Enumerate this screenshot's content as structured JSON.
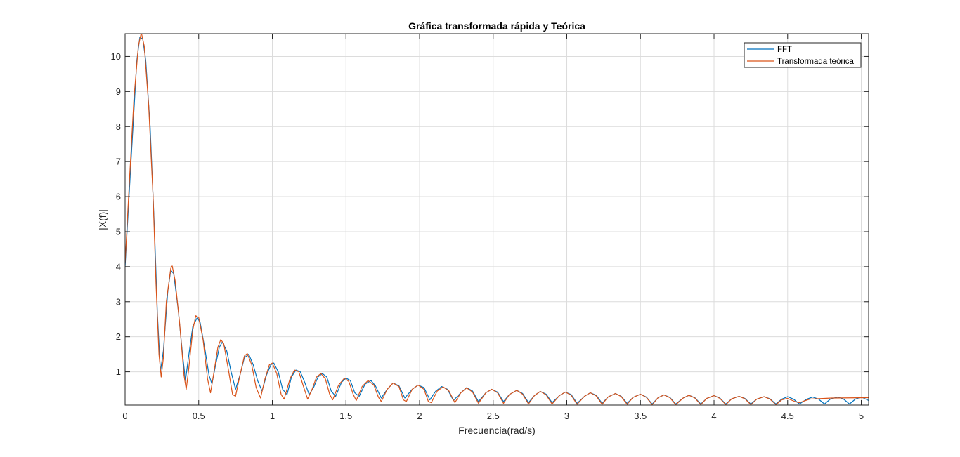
{
  "chart_data": {
    "type": "line",
    "title": "Gráfica transformada rápida y Teórica",
    "xlabel": "Frecuencia(rad/s)",
    "ylabel": "|X(f)|",
    "xlim": [
      0,
      5.05
    ],
    "ylim": [
      0.05,
      10.65
    ],
    "xticks": [
      0,
      0.5,
      1,
      1.5,
      2,
      2.5,
      3,
      3.5,
      4,
      4.5,
      5
    ],
    "xtick_labels": [
      "0",
      "0.5",
      "1",
      "1.5",
      "2",
      "2.5",
      "3",
      "3.5",
      "4",
      "4.5",
      "5"
    ],
    "yticks": [
      1,
      2,
      3,
      4,
      5,
      6,
      7,
      8,
      9,
      10
    ],
    "ytick_labels": [
      "1",
      "2",
      "3",
      "4",
      "5",
      "6",
      "7",
      "8",
      "9",
      "10"
    ],
    "grid": true,
    "legend_location": "top-right",
    "series": [
      {
        "name": "FFT",
        "color": "#0072bd",
        "points": [
          [
            0,
            4.0
          ],
          [
            0.04,
            7.0
          ],
          [
            0.08,
            9.9
          ],
          [
            0.1,
            10.55
          ],
          [
            0.12,
            10.5
          ],
          [
            0.14,
            9.9
          ],
          [
            0.17,
            8.0
          ],
          [
            0.2,
            5.0
          ],
          [
            0.22,
            2.6
          ],
          [
            0.24,
            1.0
          ],
          [
            0.26,
            1.6
          ],
          [
            0.29,
            3.3
          ],
          [
            0.31,
            3.9
          ],
          [
            0.33,
            3.8
          ],
          [
            0.36,
            2.8
          ],
          [
            0.39,
            1.5
          ],
          [
            0.41,
            0.75
          ],
          [
            0.43,
            1.4
          ],
          [
            0.46,
            2.3
          ],
          [
            0.49,
            2.55
          ],
          [
            0.51,
            2.4
          ],
          [
            0.54,
            1.7
          ],
          [
            0.57,
            0.9
          ],
          [
            0.59,
            0.65
          ],
          [
            0.61,
            1.1
          ],
          [
            0.64,
            1.7
          ],
          [
            0.66,
            1.85
          ],
          [
            0.69,
            1.6
          ],
          [
            0.72,
            1.0
          ],
          [
            0.75,
            0.5
          ],
          [
            0.78,
            0.9
          ],
          [
            0.81,
            1.4
          ],
          [
            0.84,
            1.5
          ],
          [
            0.87,
            1.2
          ],
          [
            0.9,
            0.75
          ],
          [
            0.93,
            0.45
          ],
          [
            0.96,
            0.9
          ],
          [
            0.99,
            1.2
          ],
          [
            1.01,
            1.25
          ],
          [
            1.04,
            1.0
          ],
          [
            1.07,
            0.5
          ],
          [
            1.1,
            0.35
          ],
          [
            1.13,
            0.85
          ],
          [
            1.16,
            1.05
          ],
          [
            1.19,
            1.0
          ],
          [
            1.22,
            0.7
          ],
          [
            1.25,
            0.35
          ],
          [
            1.28,
            0.55
          ],
          [
            1.31,
            0.85
          ],
          [
            1.34,
            0.95
          ],
          [
            1.37,
            0.85
          ],
          [
            1.4,
            0.45
          ],
          [
            1.43,
            0.3
          ],
          [
            1.47,
            0.7
          ],
          [
            1.5,
            0.82
          ],
          [
            1.53,
            0.75
          ],
          [
            1.56,
            0.4
          ],
          [
            1.59,
            0.3
          ],
          [
            1.63,
            0.65
          ],
          [
            1.67,
            0.75
          ],
          [
            1.7,
            0.6
          ],
          [
            1.74,
            0.25
          ],
          [
            1.78,
            0.5
          ],
          [
            1.82,
            0.68
          ],
          [
            1.86,
            0.6
          ],
          [
            1.9,
            0.25
          ],
          [
            1.95,
            0.5
          ],
          [
            1.99,
            0.62
          ],
          [
            2.03,
            0.55
          ],
          [
            2.07,
            0.2
          ],
          [
            2.11,
            0.45
          ],
          [
            2.15,
            0.58
          ],
          [
            2.19,
            0.5
          ],
          [
            2.23,
            0.18
          ],
          [
            2.28,
            0.4
          ],
          [
            2.32,
            0.55
          ],
          [
            2.36,
            0.45
          ],
          [
            2.4,
            0.15
          ],
          [
            2.45,
            0.4
          ],
          [
            2.49,
            0.5
          ],
          [
            2.53,
            0.42
          ],
          [
            2.57,
            0.15
          ],
          [
            2.61,
            0.35
          ],
          [
            2.66,
            0.47
          ],
          [
            2.7,
            0.38
          ],
          [
            2.74,
            0.12
          ],
          [
            2.78,
            0.32
          ],
          [
            2.82,
            0.44
          ],
          [
            2.86,
            0.36
          ],
          [
            2.9,
            0.12
          ],
          [
            2.95,
            0.32
          ],
          [
            2.99,
            0.42
          ],
          [
            3.03,
            0.35
          ],
          [
            3.07,
            0.1
          ],
          [
            3.12,
            0.3
          ],
          [
            3.16,
            0.4
          ],
          [
            3.2,
            0.33
          ],
          [
            3.24,
            0.1
          ],
          [
            3.28,
            0.28
          ],
          [
            3.33,
            0.38
          ],
          [
            3.37,
            0.3
          ],
          [
            3.41,
            0.1
          ],
          [
            3.45,
            0.27
          ],
          [
            3.5,
            0.36
          ],
          [
            3.54,
            0.28
          ],
          [
            3.58,
            0.08
          ],
          [
            3.62,
            0.26
          ],
          [
            3.66,
            0.34
          ],
          [
            3.7,
            0.27
          ],
          [
            3.74,
            0.08
          ],
          [
            3.79,
            0.25
          ],
          [
            3.83,
            0.33
          ],
          [
            3.87,
            0.26
          ],
          [
            3.91,
            0.08
          ],
          [
            3.95,
            0.24
          ],
          [
            4.0,
            0.32
          ],
          [
            4.04,
            0.25
          ],
          [
            4.08,
            0.08
          ],
          [
            4.12,
            0.23
          ],
          [
            4.17,
            0.3
          ],
          [
            4.21,
            0.24
          ],
          [
            4.25,
            0.08
          ],
          [
            4.29,
            0.22
          ],
          [
            4.34,
            0.29
          ],
          [
            4.38,
            0.23
          ],
          [
            4.42,
            0.08
          ],
          [
            4.46,
            0.22
          ],
          [
            4.5,
            0.29
          ],
          [
            4.54,
            0.22
          ],
          [
            4.58,
            0.08
          ],
          [
            4.63,
            0.22
          ],
          [
            4.67,
            0.28
          ],
          [
            4.71,
            0.22
          ],
          [
            4.75,
            0.08
          ],
          [
            4.79,
            0.22
          ],
          [
            4.84,
            0.28
          ],
          [
            4.88,
            0.22
          ],
          [
            4.92,
            0.08
          ],
          [
            4.96,
            0.22
          ],
          [
            5.0,
            0.28
          ],
          [
            5.05,
            0.18
          ]
        ]
      },
      {
        "name": "Transformada teórica",
        "color": "#d95319",
        "points": [
          [
            0,
            4.1
          ],
          [
            0.03,
            6.5
          ],
          [
            0.06,
            8.8
          ],
          [
            0.09,
            10.3
          ],
          [
            0.11,
            10.68
          ],
          [
            0.13,
            10.3
          ],
          [
            0.16,
            8.6
          ],
          [
            0.19,
            6.0
          ],
          [
            0.21,
            3.5
          ],
          [
            0.23,
            1.5
          ],
          [
            0.245,
            0.85
          ],
          [
            0.26,
            1.4
          ],
          [
            0.28,
            3.0
          ],
          [
            0.31,
            3.95
          ],
          [
            0.32,
            4.02
          ],
          [
            0.34,
            3.6
          ],
          [
            0.37,
            2.4
          ],
          [
            0.4,
            0.9
          ],
          [
            0.415,
            0.5
          ],
          [
            0.43,
            1.0
          ],
          [
            0.46,
            2.2
          ],
          [
            0.48,
            2.6
          ],
          [
            0.5,
            2.55
          ],
          [
            0.53,
            1.9
          ],
          [
            0.56,
            0.8
          ],
          [
            0.58,
            0.4
          ],
          [
            0.6,
            0.9
          ],
          [
            0.63,
            1.7
          ],
          [
            0.65,
            1.92
          ],
          [
            0.67,
            1.8
          ],
          [
            0.7,
            1.1
          ],
          [
            0.73,
            0.35
          ],
          [
            0.75,
            0.3
          ],
          [
            0.78,
            0.9
          ],
          [
            0.81,
            1.45
          ],
          [
            0.83,
            1.52
          ],
          [
            0.86,
            1.2
          ],
          [
            0.89,
            0.55
          ],
          [
            0.92,
            0.25
          ],
          [
            0.95,
            0.8
          ],
          [
            0.98,
            1.2
          ],
          [
            1.0,
            1.25
          ],
          [
            1.03,
            0.95
          ],
          [
            1.06,
            0.35
          ],
          [
            1.08,
            0.22
          ],
          [
            1.12,
            0.8
          ],
          [
            1.15,
            1.05
          ],
          [
            1.18,
            1.0
          ],
          [
            1.21,
            0.6
          ],
          [
            1.24,
            0.22
          ],
          [
            1.27,
            0.5
          ],
          [
            1.3,
            0.85
          ],
          [
            1.33,
            0.95
          ],
          [
            1.36,
            0.8
          ],
          [
            1.39,
            0.35
          ],
          [
            1.41,
            0.2
          ],
          [
            1.45,
            0.62
          ],
          [
            1.49,
            0.82
          ],
          [
            1.52,
            0.72
          ],
          [
            1.55,
            0.35
          ],
          [
            1.57,
            0.18
          ],
          [
            1.61,
            0.58
          ],
          [
            1.65,
            0.75
          ],
          [
            1.69,
            0.62
          ],
          [
            1.72,
            0.28
          ],
          [
            1.74,
            0.15
          ],
          [
            1.78,
            0.5
          ],
          [
            1.82,
            0.68
          ],
          [
            1.86,
            0.58
          ],
          [
            1.89,
            0.2
          ],
          [
            1.91,
            0.15
          ],
          [
            1.95,
            0.5
          ],
          [
            1.99,
            0.62
          ],
          [
            2.03,
            0.5
          ],
          [
            2.06,
            0.15
          ],
          [
            2.08,
            0.12
          ],
          [
            2.12,
            0.45
          ],
          [
            2.16,
            0.57
          ],
          [
            2.2,
            0.45
          ],
          [
            2.24,
            0.12
          ],
          [
            2.28,
            0.4
          ],
          [
            2.32,
            0.54
          ],
          [
            2.36,
            0.42
          ],
          [
            2.4,
            0.1
          ],
          [
            2.45,
            0.4
          ],
          [
            2.49,
            0.5
          ],
          [
            2.53,
            0.4
          ],
          [
            2.57,
            0.1
          ],
          [
            2.61,
            0.35
          ],
          [
            2.66,
            0.47
          ],
          [
            2.7,
            0.36
          ],
          [
            2.74,
            0.08
          ],
          [
            2.78,
            0.32
          ],
          [
            2.82,
            0.44
          ],
          [
            2.86,
            0.34
          ],
          [
            2.9,
            0.08
          ],
          [
            2.95,
            0.32
          ],
          [
            2.99,
            0.42
          ],
          [
            3.03,
            0.33
          ],
          [
            3.07,
            0.07
          ],
          [
            3.12,
            0.3
          ],
          [
            3.16,
            0.4
          ],
          [
            3.2,
            0.31
          ],
          [
            3.24,
            0.07
          ],
          [
            3.28,
            0.28
          ],
          [
            3.33,
            0.38
          ],
          [
            3.37,
            0.29
          ],
          [
            3.41,
            0.07
          ],
          [
            3.45,
            0.27
          ],
          [
            3.5,
            0.36
          ],
          [
            3.54,
            0.27
          ],
          [
            3.58,
            0.06
          ],
          [
            3.62,
            0.26
          ],
          [
            3.66,
            0.34
          ],
          [
            3.7,
            0.26
          ],
          [
            3.74,
            0.06
          ],
          [
            3.79,
            0.25
          ],
          [
            3.83,
            0.33
          ],
          [
            3.87,
            0.25
          ],
          [
            3.91,
            0.06
          ],
          [
            3.95,
            0.24
          ],
          [
            4.0,
            0.32
          ],
          [
            4.04,
            0.24
          ],
          [
            4.08,
            0.06
          ],
          [
            4.12,
            0.23
          ],
          [
            4.17,
            0.3
          ],
          [
            4.21,
            0.23
          ],
          [
            4.25,
            0.06
          ],
          [
            4.29,
            0.22
          ],
          [
            4.34,
            0.29
          ],
          [
            4.38,
            0.22
          ],
          [
            4.42,
            0.06
          ],
          [
            4.46,
            0.2
          ],
          [
            4.5,
            0.24
          ],
          [
            4.55,
            0.15
          ],
          [
            4.58,
            0.12
          ],
          [
            4.65,
            0.22
          ],
          [
            4.8,
            0.25
          ],
          [
            5.05,
            0.26
          ]
        ]
      }
    ]
  }
}
